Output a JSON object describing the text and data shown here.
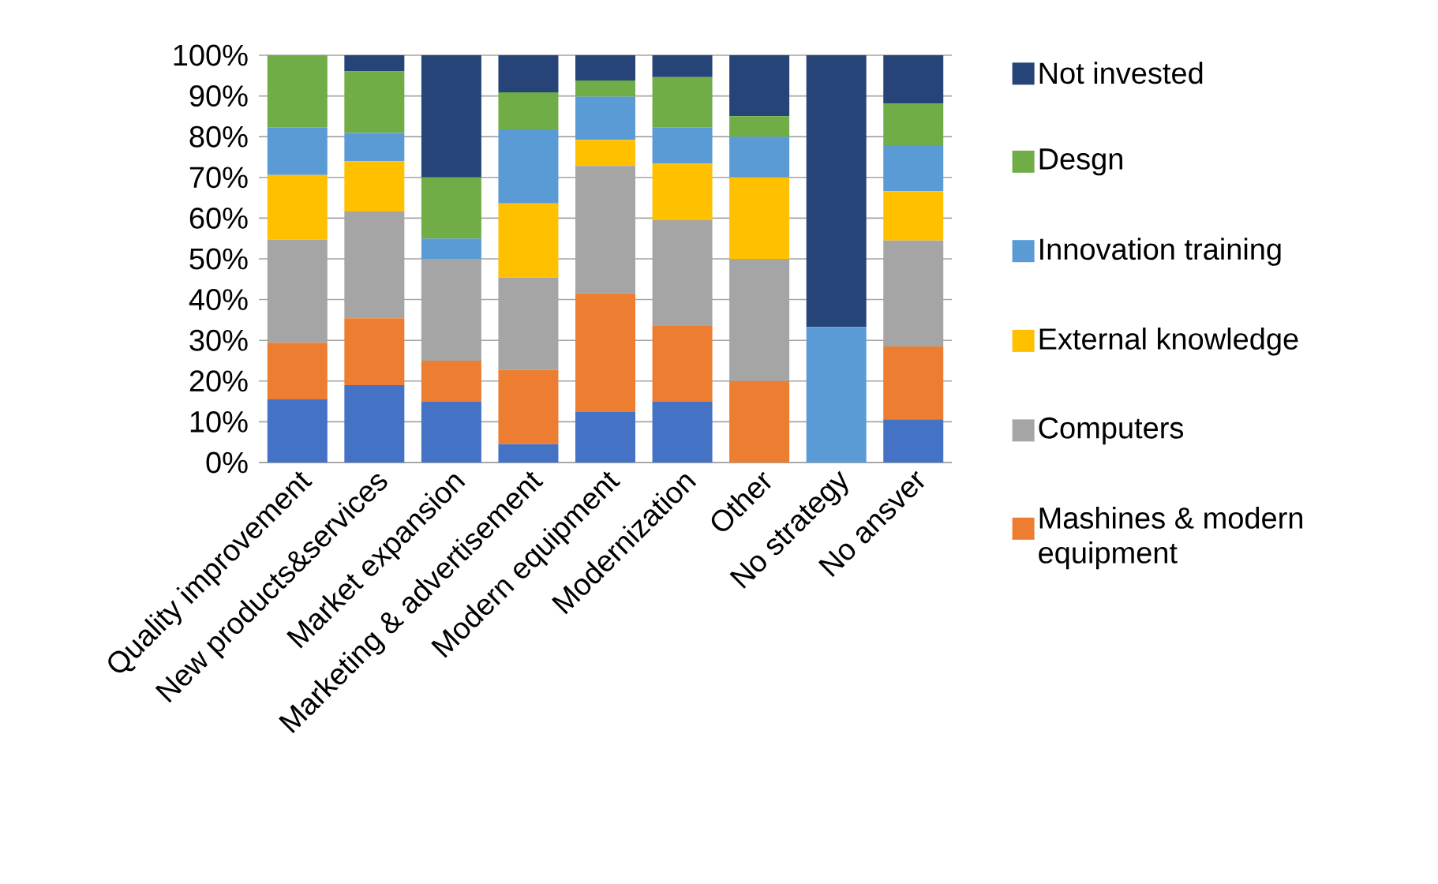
{
  "chart_data": {
    "type": "bar",
    "stacked": true,
    "categories": [
      "Quality improvement",
      "New products&services",
      "Market expansion",
      "Marketing & advertisement",
      "Modern equipment",
      "Modernization",
      "Other",
      "No strategy",
      "No ansver"
    ],
    "series": [
      {
        "color": "#4472c4",
        "values": [
          15.5,
          19,
          15,
          4.5,
          12.4,
          15,
          0,
          0,
          10.6
        ]
      },
      {
        "name": "Mashines & modern equipment",
        "color": "#ed7d31",
        "values": [
          13.9,
          16.4,
          10,
          18.2,
          29.1,
          18.5,
          20,
          0,
          17.9
        ]
      },
      {
        "name": "Computers",
        "color": "#a5a5a5",
        "values": [
          25.3,
          26.2,
          25,
          22.7,
          31.3,
          26,
          30,
          0,
          26
        ]
      },
      {
        "name": "External knowledge",
        "color": "#ffc000",
        "values": [
          15.9,
          12.4,
          0,
          18.2,
          6.4,
          13.9,
          20,
          0,
          12.1
        ]
      },
      {
        "name": "Innovation training",
        "color": "#5b9bd5",
        "values": [
          11.7,
          6.9,
          5,
          18.2,
          10.6,
          8.9,
          10,
          33.3,
          11.1
        ]
      },
      {
        "name": "Desgn",
        "color": "#70ad47",
        "values": [
          17.7,
          15.1,
          15,
          9.1,
          4.0,
          12.3,
          5,
          0,
          10.4
        ]
      },
      {
        "name": "Not invested",
        "color": "#264478",
        "values": [
          0,
          4.0,
          30,
          9.1,
          6.2,
          5.4,
          15,
          66.7,
          11.9
        ]
      }
    ],
    "ylim": [
      0,
      100
    ],
    "yticks": [
      {
        "value": 0,
        "label": "0%"
      },
      {
        "value": 10,
        "label": "10%"
      },
      {
        "value": 20,
        "label": "20%"
      },
      {
        "value": 30,
        "label": "30%"
      },
      {
        "value": 40,
        "label": "40%"
      },
      {
        "value": 50,
        "label": "50%"
      },
      {
        "value": 60,
        "label": "60%"
      },
      {
        "value": 70,
        "label": "70%"
      },
      {
        "value": 80,
        "label": "80%"
      },
      {
        "value": 90,
        "label": "90%"
      },
      {
        "value": 100,
        "label": "100%"
      }
    ],
    "grid": "y",
    "legend": "right"
  }
}
